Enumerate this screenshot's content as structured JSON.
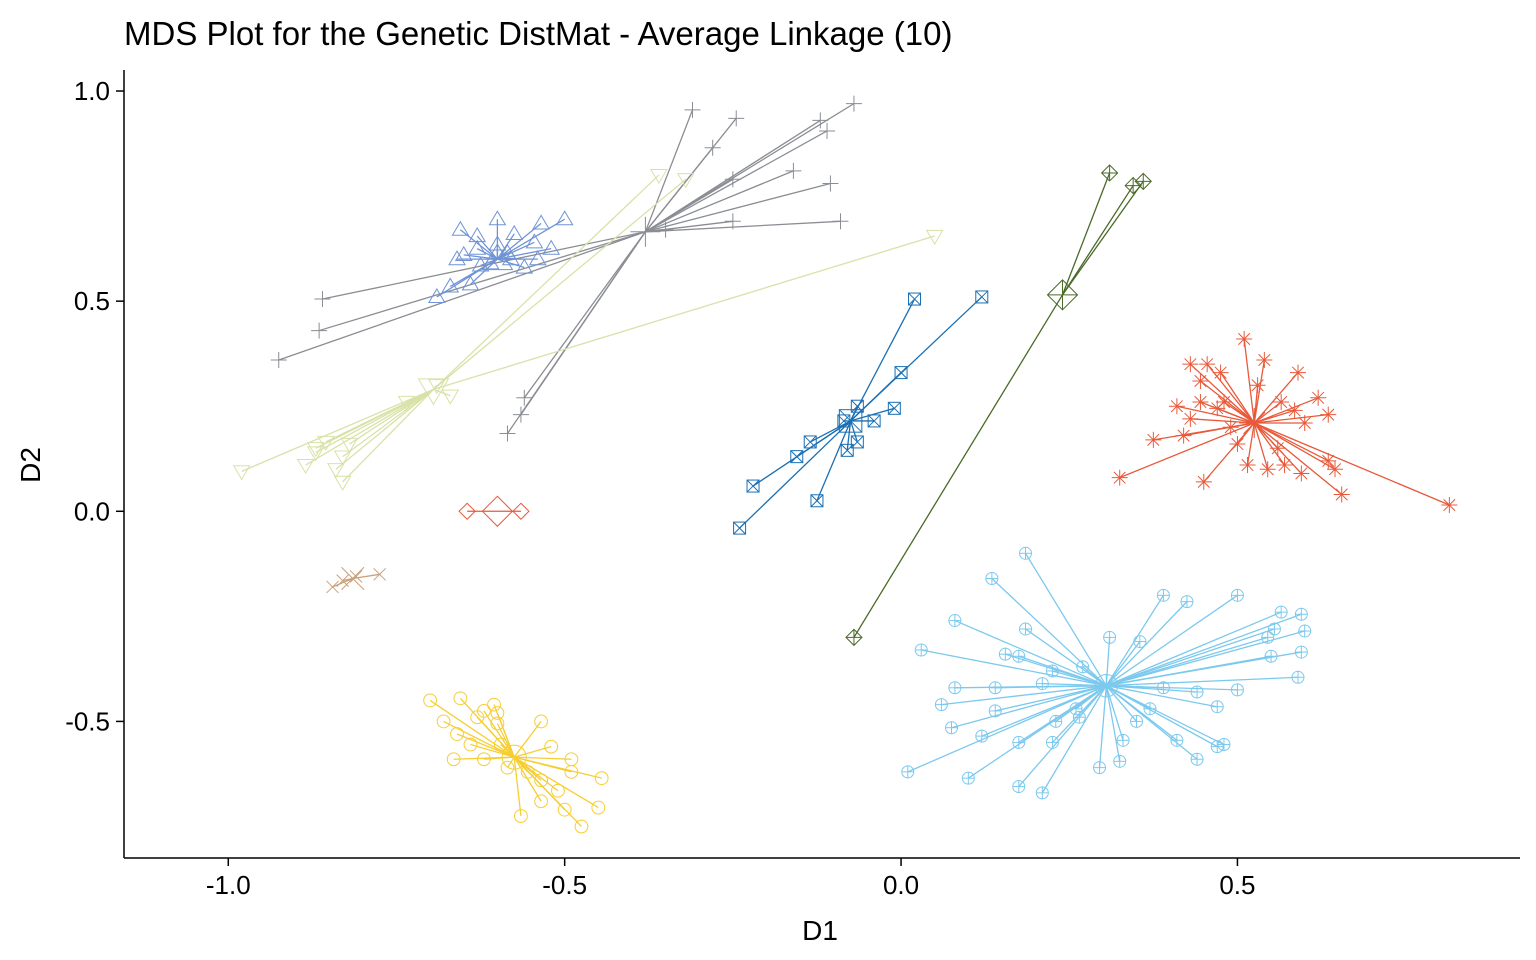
{
  "chart_data": {
    "type": "scatter",
    "title": "MDS Plot for the Genetic DistMat - Average Linkage (10)",
    "xlabel": "D1",
    "ylabel": "D2",
    "xlim": [
      -1.155,
      0.92
    ],
    "ylim": [
      -0.825,
      1.05
    ],
    "x_ticks": [
      {
        "value": -1.0,
        "label": "-1.0"
      },
      {
        "value": -0.5,
        "label": "-0.5"
      },
      {
        "value": 0.0,
        "label": "0.0"
      },
      {
        "value": 0.5,
        "label": "0.5"
      }
    ],
    "y_ticks": [
      {
        "value": 1.0,
        "label": "1.0"
      },
      {
        "value": 0.5,
        "label": "0.5"
      },
      {
        "value": 0.0,
        "label": "0.0"
      },
      {
        "value": -0.5,
        "label": "-0.5"
      }
    ],
    "grid": false,
    "legend": "none",
    "clusters": [
      {
        "shape": "plus",
        "color": "#8a8d93",
        "centroid": [
          -0.38,
          0.665
        ],
        "points": [
          [
            -0.31,
            0.955
          ],
          [
            -0.245,
            0.935
          ],
          [
            -0.28,
            0.865
          ],
          [
            -0.12,
            0.93
          ],
          [
            -0.07,
            0.97
          ],
          [
            -0.25,
            0.79
          ],
          [
            -0.16,
            0.81
          ],
          [
            -0.105,
            0.78
          ],
          [
            -0.11,
            0.905
          ],
          [
            -0.09,
            0.69
          ],
          [
            -0.25,
            0.69
          ],
          [
            -0.86,
            0.505
          ],
          [
            -0.865,
            0.43
          ],
          [
            -0.925,
            0.36
          ],
          [
            -0.56,
            0.27
          ],
          [
            -0.585,
            0.185
          ],
          [
            -0.565,
            0.23
          ],
          [
            -0.35,
            0.67
          ]
        ]
      },
      {
        "shape": "triangle-up",
        "color": "#6f93d6",
        "centroid": [
          -0.6,
          0.6
        ],
        "points": [
          [
            -0.655,
            0.67
          ],
          [
            -0.63,
            0.655
          ],
          [
            -0.6,
            0.695
          ],
          [
            -0.575,
            0.66
          ],
          [
            -0.535,
            0.685
          ],
          [
            -0.5,
            0.695
          ],
          [
            -0.545,
            0.64
          ],
          [
            -0.52,
            0.625
          ],
          [
            -0.66,
            0.6
          ],
          [
            -0.625,
            0.585
          ],
          [
            -0.585,
            0.615
          ],
          [
            -0.56,
            0.58
          ],
          [
            -0.69,
            0.51
          ],
          [
            -0.67,
            0.535
          ],
          [
            -0.64,
            0.54
          ],
          [
            -0.61,
            0.59
          ],
          [
            -0.63,
            0.625
          ],
          [
            -0.58,
            0.6
          ],
          [
            -0.65,
            0.61
          ],
          [
            -0.6,
            0.635
          ],
          [
            -0.54,
            0.6
          ]
        ]
      },
      {
        "shape": "triangle-down",
        "color": "#d8e2a8",
        "centroid": [
          -0.695,
          0.29
        ],
        "points": [
          [
            -0.36,
            0.8
          ],
          [
            -0.32,
            0.79
          ],
          [
            0.05,
            0.655
          ],
          [
            -0.98,
            0.095
          ],
          [
            -0.885,
            0.11
          ],
          [
            -0.83,
            0.07
          ],
          [
            -0.84,
            0.1
          ],
          [
            -0.87,
            0.15
          ],
          [
            -0.855,
            0.165
          ],
          [
            -0.82,
            0.16
          ],
          [
            -0.83,
            0.13
          ],
          [
            -0.87,
            0.14
          ],
          [
            -0.735,
            0.26
          ],
          [
            -0.69,
            0.3
          ],
          [
            -0.67,
            0.275
          ]
        ]
      },
      {
        "shape": "diamond",
        "color": "#e8593a",
        "centroid": [
          -0.6,
          0.0
        ],
        "points": [
          [
            -0.645,
            0.0
          ],
          [
            -0.565,
            0.0
          ]
        ]
      },
      {
        "shape": "x",
        "color": "#c9a07a",
        "centroid": [
          -0.815,
          -0.16
        ],
        "points": [
          [
            -0.845,
            -0.18
          ],
          [
            -0.83,
            -0.165
          ],
          [
            -0.775,
            -0.15
          ],
          [
            -0.81,
            -0.155
          ]
        ]
      },
      {
        "shape": "circle",
        "color": "#f6ce33",
        "centroid": [
          -0.575,
          -0.585
        ],
        "points": [
          [
            -0.7,
            -0.45
          ],
          [
            -0.655,
            -0.445
          ],
          [
            -0.68,
            -0.5
          ],
          [
            -0.62,
            -0.475
          ],
          [
            -0.605,
            -0.46
          ],
          [
            -0.6,
            -0.48
          ],
          [
            -0.63,
            -0.49
          ],
          [
            -0.535,
            -0.5
          ],
          [
            -0.66,
            -0.53
          ],
          [
            -0.64,
            -0.555
          ],
          [
            -0.665,
            -0.59
          ],
          [
            -0.62,
            -0.59
          ],
          [
            -0.585,
            -0.61
          ],
          [
            -0.52,
            -0.56
          ],
          [
            -0.49,
            -0.59
          ],
          [
            -0.555,
            -0.62
          ],
          [
            -0.535,
            -0.64
          ],
          [
            -0.49,
            -0.62
          ],
          [
            -0.445,
            -0.635
          ],
          [
            -0.51,
            -0.665
          ],
          [
            -0.535,
            -0.69
          ],
          [
            -0.45,
            -0.705
          ],
          [
            -0.5,
            -0.71
          ],
          [
            -0.565,
            -0.725
          ],
          [
            -0.475,
            -0.75
          ],
          [
            -0.595,
            -0.555
          ],
          [
            -0.6,
            -0.505
          ]
        ]
      },
      {
        "shape": "square-x",
        "color": "#1a6fb4",
        "centroid": [
          -0.075,
          0.215
        ],
        "points": [
          [
            0.02,
            0.505
          ],
          [
            0.12,
            0.51
          ],
          [
            0.0,
            0.33
          ],
          [
            -0.065,
            0.25
          ],
          [
            -0.04,
            0.215
          ],
          [
            -0.01,
            0.245
          ],
          [
            -0.065,
            0.165
          ],
          [
            -0.08,
            0.145
          ],
          [
            -0.135,
            0.165
          ],
          [
            -0.155,
            0.13
          ],
          [
            -0.125,
            0.025
          ],
          [
            -0.22,
            0.06
          ],
          [
            -0.24,
            -0.04
          ],
          [
            -0.085,
            0.215
          ]
        ]
      },
      {
        "shape": "diamond-plus",
        "color": "#4a6a28",
        "centroid": [
          0.24,
          0.515
        ],
        "points": [
          [
            0.31,
            0.805
          ],
          [
            0.345,
            0.775
          ],
          [
            0.36,
            0.785
          ],
          [
            -0.07,
            -0.3
          ]
        ]
      },
      {
        "shape": "asterisk",
        "color": "#e8593a",
        "centroid": [
          0.525,
          0.21
        ],
        "points": [
          [
            0.51,
            0.41
          ],
          [
            0.455,
            0.35
          ],
          [
            0.54,
            0.36
          ],
          [
            0.43,
            0.35
          ],
          [
            0.445,
            0.31
          ],
          [
            0.475,
            0.33
          ],
          [
            0.59,
            0.33
          ],
          [
            0.62,
            0.27
          ],
          [
            0.635,
            0.23
          ],
          [
            0.41,
            0.25
          ],
          [
            0.445,
            0.26
          ],
          [
            0.47,
            0.245
          ],
          [
            0.565,
            0.26
          ],
          [
            0.585,
            0.24
          ],
          [
            0.6,
            0.21
          ],
          [
            0.375,
            0.17
          ],
          [
            0.42,
            0.18
          ],
          [
            0.5,
            0.16
          ],
          [
            0.515,
            0.11
          ],
          [
            0.545,
            0.1
          ],
          [
            0.57,
            0.11
          ],
          [
            0.595,
            0.09
          ],
          [
            0.635,
            0.12
          ],
          [
            0.325,
            0.08
          ],
          [
            0.45,
            0.07
          ],
          [
            0.645,
            0.1
          ],
          [
            0.655,
            0.04
          ],
          [
            0.815,
            0.015
          ],
          [
            0.43,
            0.22
          ],
          [
            0.49,
            0.2
          ],
          [
            0.53,
            0.3
          ],
          [
            0.48,
            0.26
          ],
          [
            0.56,
            0.15
          ]
        ]
      },
      {
        "shape": "circle-plus",
        "color": "#7cc9ee",
        "centroid": [
          0.305,
          -0.415
        ],
        "points": [
          [
            0.185,
            -0.1
          ],
          [
            0.135,
            -0.16
          ],
          [
            0.39,
            -0.2
          ],
          [
            0.425,
            -0.215
          ],
          [
            0.5,
            -0.2
          ],
          [
            0.565,
            -0.24
          ],
          [
            0.595,
            -0.245
          ],
          [
            0.6,
            -0.285
          ],
          [
            0.555,
            -0.28
          ],
          [
            0.545,
            -0.3
          ],
          [
            0.08,
            -0.26
          ],
          [
            0.185,
            -0.28
          ],
          [
            0.31,
            -0.3
          ],
          [
            0.355,
            -0.31
          ],
          [
            0.03,
            -0.33
          ],
          [
            0.155,
            -0.34
          ],
          [
            0.175,
            -0.345
          ],
          [
            0.225,
            -0.38
          ],
          [
            0.27,
            -0.37
          ],
          [
            0.55,
            -0.345
          ],
          [
            0.595,
            -0.335
          ],
          [
            0.59,
            -0.395
          ],
          [
            0.08,
            -0.42
          ],
          [
            0.14,
            -0.42
          ],
          [
            0.21,
            -0.41
          ],
          [
            0.39,
            -0.42
          ],
          [
            0.44,
            -0.43
          ],
          [
            0.5,
            -0.425
          ],
          [
            0.06,
            -0.46
          ],
          [
            0.14,
            -0.475
          ],
          [
            0.26,
            -0.47
          ],
          [
            0.37,
            -0.47
          ],
          [
            0.47,
            -0.465
          ],
          [
            0.075,
            -0.515
          ],
          [
            0.12,
            -0.535
          ],
          [
            0.175,
            -0.55
          ],
          [
            0.225,
            -0.55
          ],
          [
            0.33,
            -0.545
          ],
          [
            0.41,
            -0.545
          ],
          [
            0.47,
            -0.56
          ],
          [
            0.01,
            -0.62
          ],
          [
            0.1,
            -0.635
          ],
          [
            0.175,
            -0.655
          ],
          [
            0.21,
            -0.67
          ],
          [
            0.295,
            -0.61
          ],
          [
            0.325,
            -0.595
          ],
          [
            0.44,
            -0.59
          ],
          [
            0.265,
            -0.49
          ],
          [
            0.35,
            -0.5
          ],
          [
            0.23,
            -0.5
          ],
          [
            0.48,
            -0.555
          ]
        ]
      }
    ]
  }
}
